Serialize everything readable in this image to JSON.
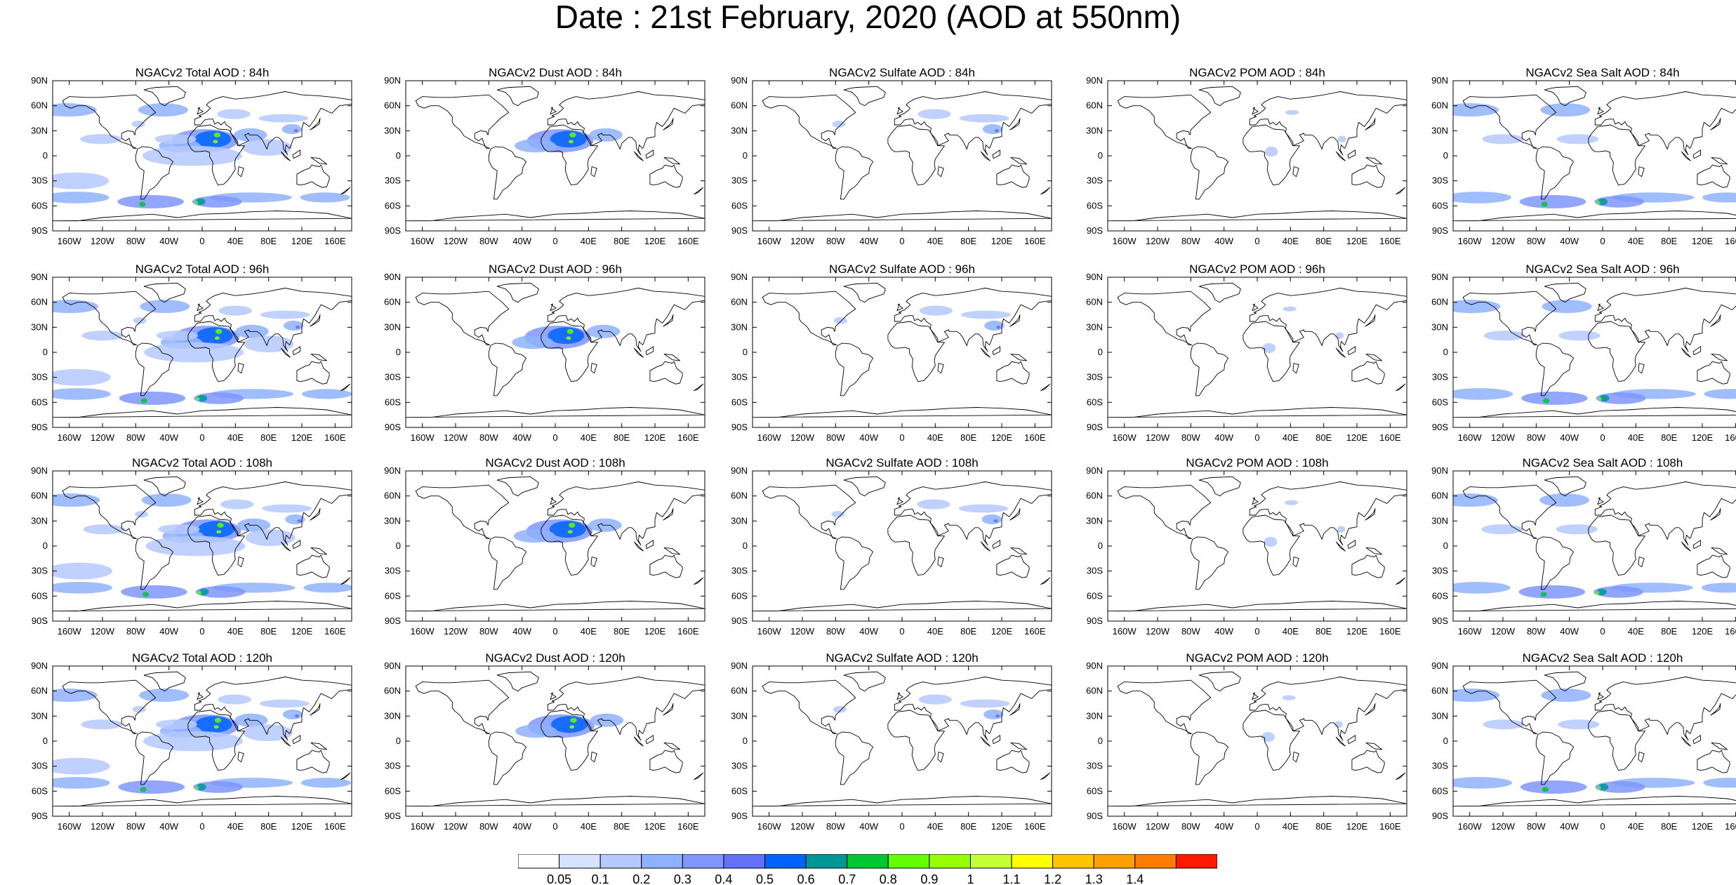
{
  "title": "Date : 21st February, 2020 (AOD at 550nm)",
  "rows": [
    {
      "hour": "84h",
      "panels": [
        {
          "species": "total",
          "title": "NGACv2 Total AOD : 84h"
        },
        {
          "species": "dust",
          "title": "NGACv2 Dust AOD : 84h"
        },
        {
          "species": "sulfate",
          "title": "NGACv2 Sulfate AOD : 84h"
        },
        {
          "species": "pom",
          "title": "NGACv2 POM AOD : 84h"
        },
        {
          "species": "seasalt",
          "title": "NGACv2 Sea Salt AOD : 84h"
        }
      ]
    },
    {
      "hour": "96h",
      "panels": [
        {
          "species": "total",
          "title": "NGACv2 Total AOD : 96h"
        },
        {
          "species": "dust",
          "title": "NGACv2 Dust AOD : 96h"
        },
        {
          "species": "sulfate",
          "title": "NGACv2 Sulfate AOD : 96h"
        },
        {
          "species": "pom",
          "title": "NGACv2 POM AOD : 96h"
        },
        {
          "species": "seasalt",
          "title": "NGACv2 Sea Salt AOD : 96h"
        }
      ]
    },
    {
      "hour": "108h",
      "panels": [
        {
          "species": "total",
          "title": "NGACv2 Total AOD : 108h"
        },
        {
          "species": "dust",
          "title": "NGACv2 Dust AOD : 108h"
        },
        {
          "species": "sulfate",
          "title": "NGACv2 Sulfate AOD : 108h"
        },
        {
          "species": "pom",
          "title": "NGACv2 POM AOD : 108h"
        },
        {
          "species": "seasalt",
          "title": "NGACv2 Sea Salt AOD : 108h"
        }
      ]
    },
    {
      "hour": "120h",
      "panels": [
        {
          "species": "total",
          "title": "NGACv2 Total AOD : 120h"
        },
        {
          "species": "dust",
          "title": "NGACv2 Dust AOD : 120h"
        },
        {
          "species": "sulfate",
          "title": "NGACv2 Sulfate AOD : 120h"
        },
        {
          "species": "pom",
          "title": "NGACv2 POM AOD : 120h"
        },
        {
          "species": "seasalt",
          "title": "NGACv2 Sea Salt  AOD : 120h"
        }
      ]
    }
  ],
  "axes": {
    "lat_labels": [
      "90N",
      "60N",
      "30N",
      "0",
      "30S",
      "60S",
      "90S"
    ],
    "lon_labels": [
      "160W",
      "120W",
      "80W",
      "40W",
      "0",
      "40E",
      "80E",
      "120E",
      "160E"
    ]
  },
  "colorbar": {
    "labels": [
      "0.05",
      "0.1",
      "0.2",
      "0.3",
      "0.4",
      "0.5",
      "0.6",
      "0.7",
      "0.8",
      "0.9",
      "1",
      "1.1",
      "1.2",
      "1.3",
      "1.4"
    ],
    "colors": [
      "#ffffff",
      "#d6e2ff",
      "#b5c9ff",
      "#8eb2ff",
      "#7f96ff",
      "#6370f8",
      "#0063ff",
      "#009696",
      "#00c633",
      "#63ff00",
      "#96ff00",
      "#c6ff33",
      "#ffff00",
      "#ffc600",
      "#ffa000",
      "#ff7c00",
      "#ff1900"
    ]
  }
}
